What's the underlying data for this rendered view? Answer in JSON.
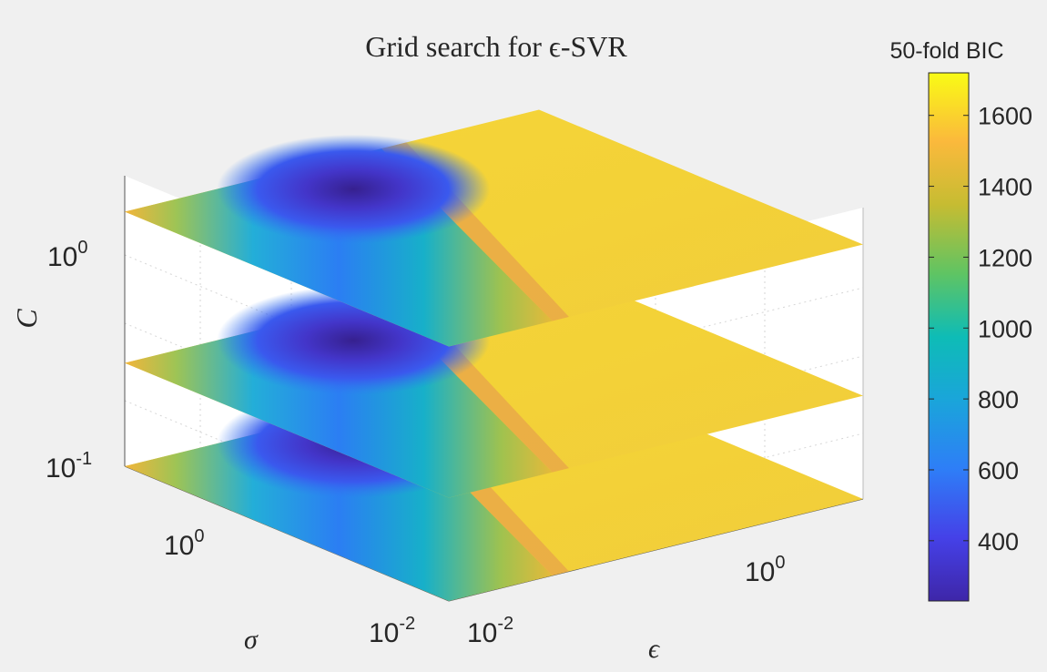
{
  "chart_data": {
    "type": "heatmap",
    "title": "Grid search for ϵ-SVR",
    "xlabel": "ϵ",
    "ylabel": "σ",
    "zlabel": "C",
    "x_scale": "log",
    "y_scale": "log",
    "z_scale": "log",
    "x_ticks": [
      {
        "value": 0.01,
        "base": "10",
        "exp": "-2"
      },
      {
        "value": 1,
        "base": "10",
        "exp": "0"
      }
    ],
    "y_ticks": [
      {
        "value": 0.01,
        "base": "10",
        "exp": "-2"
      },
      {
        "value": 1,
        "base": "10",
        "exp": "0"
      }
    ],
    "z_ticks": [
      {
        "value": 0.1,
        "base": "10",
        "exp": "-1"
      },
      {
        "value": 1,
        "base": "10",
        "exp": "0"
      }
    ],
    "slices": [
      {
        "C": 0.1,
        "min_bic_region": "low ϵ, mid σ"
      },
      {
        "C": 0.3,
        "min_bic_region": "low ϵ, mid σ"
      },
      {
        "C": 1.5,
        "min_bic_region": "low ϵ, mid σ"
      }
    ],
    "colorbar": {
      "label": "50-fold BIC",
      "range": [
        230,
        1720
      ],
      "ticks": [
        400,
        600,
        800,
        1000,
        1200,
        1400,
        1600
      ],
      "colormap": "parula"
    },
    "grid": true
  }
}
